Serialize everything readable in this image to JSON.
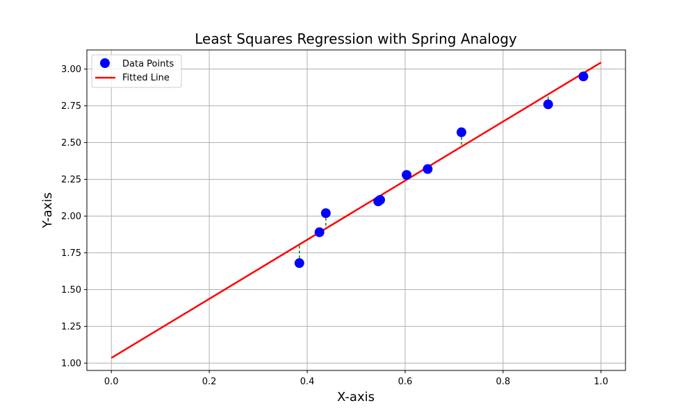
{
  "chart_data": {
    "type": "scatter",
    "title": "Least Squares Regression with Spring Analogy",
    "xlabel": "X-axis",
    "ylabel": "Y-axis",
    "xlim": [
      -0.05,
      1.05
    ],
    "ylim": [
      0.95,
      3.13
    ],
    "xticks": [
      "0.0",
      "0.2",
      "0.4",
      "0.6",
      "0.8",
      "1.0"
    ],
    "yticks": [
      "1.00",
      "1.25",
      "1.50",
      "1.75",
      "2.00",
      "2.25",
      "2.50",
      "2.75",
      "3.00"
    ],
    "grid": true,
    "legend_position": "upper-left",
    "series": [
      {
        "name": "Data Points",
        "kind": "scatter",
        "color": "#0000ff",
        "x": [
          0.384,
          0.425,
          0.438,
          0.545,
          0.549,
          0.603,
          0.646,
          0.715,
          0.892,
          0.964
        ],
        "y": [
          1.68,
          1.89,
          2.02,
          2.1,
          2.11,
          2.28,
          2.32,
          2.57,
          2.76,
          2.95
        ]
      },
      {
        "name": "Fitted Line",
        "kind": "line",
        "color": "#ff0000",
        "x": [
          0.0,
          1.0
        ],
        "y": [
          1.035,
          3.045
        ]
      }
    ],
    "residuals": {
      "style": "dashed",
      "color": "#008000"
    }
  }
}
